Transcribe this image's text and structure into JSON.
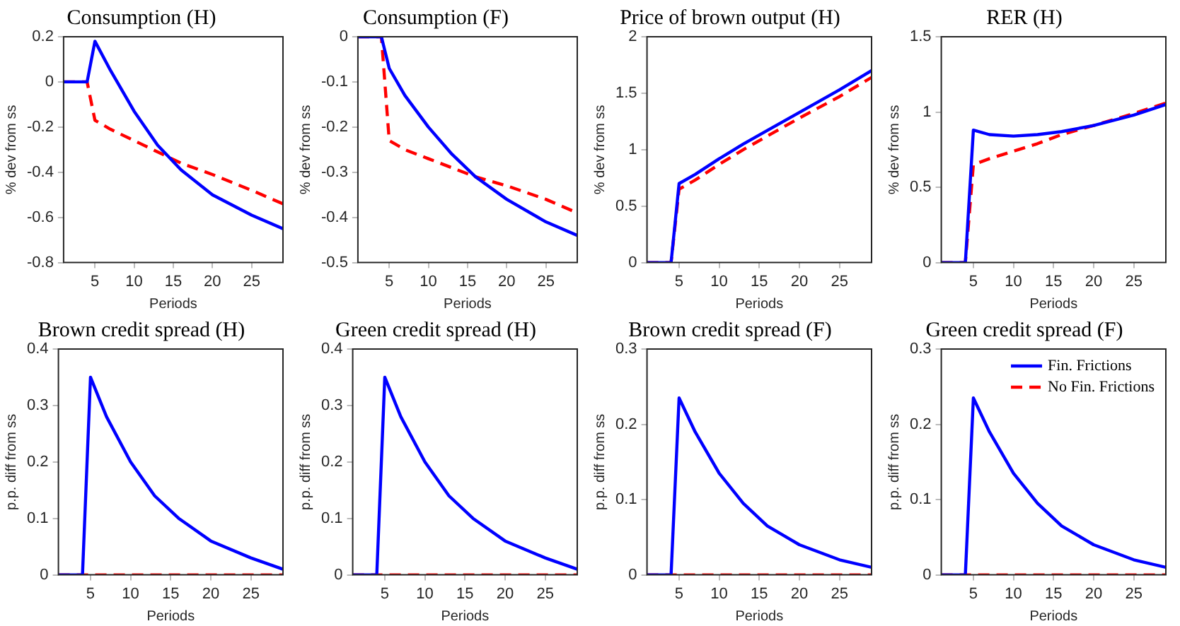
{
  "chart_data": [
    {
      "type": "line",
      "title": "Consumption (H)",
      "xlabel": "Periods",
      "ylabel": "% dev from ss",
      "x": [
        1,
        4,
        5,
        7,
        10,
        13,
        16,
        20,
        25,
        29
      ],
      "xlim": [
        1,
        29
      ],
      "xticks": [
        5,
        10,
        15,
        20,
        25
      ],
      "ylim": [
        -0.8,
        0.2
      ],
      "yticks": [
        -0.8,
        -0.6,
        -0.4,
        -0.2,
        0,
        0.2
      ],
      "grid": false,
      "legend": false,
      "marker": "none",
      "series": [
        {
          "color": "#0000ff",
          "line_style": "solid",
          "values": [
            0,
            0,
            0.18,
            0.05,
            -0.13,
            -0.28,
            -0.39,
            -0.5,
            -0.59,
            -0.65
          ]
        },
        {
          "color": "#ff0000",
          "line_style": "dashed",
          "values": [
            0,
            0,
            -0.17,
            -0.21,
            -0.26,
            -0.31,
            -0.36,
            -0.41,
            -0.48,
            -0.54
          ]
        }
      ]
    },
    {
      "type": "line",
      "title": "Consumption (F)",
      "xlabel": "Periods",
      "ylabel": "% dev from ss",
      "x": [
        1,
        4,
        5,
        7,
        10,
        13,
        16,
        20,
        25,
        29
      ],
      "xlim": [
        1,
        29
      ],
      "xticks": [
        5,
        10,
        15,
        20,
        25
      ],
      "ylim": [
        -0.5,
        0
      ],
      "yticks": [
        -0.5,
        -0.4,
        -0.3,
        -0.2,
        -0.1,
        0
      ],
      "grid": false,
      "legend": false,
      "marker": "none",
      "series": [
        {
          "color": "#0000ff",
          "line_style": "solid",
          "values": [
            0,
            0,
            -0.07,
            -0.13,
            -0.2,
            -0.26,
            -0.31,
            -0.36,
            -0.41,
            -0.44
          ]
        },
        {
          "color": "#ff0000",
          "line_style": "dashed",
          "values": [
            0,
            0,
            -0.23,
            -0.25,
            -0.27,
            -0.29,
            -0.31,
            -0.33,
            -0.36,
            -0.39
          ]
        }
      ]
    },
    {
      "type": "line",
      "title": "Price of brown output (H)",
      "xlabel": "Periods",
      "ylabel": "% dev from ss",
      "x": [
        1,
        4,
        5,
        7,
        10,
        13,
        16,
        20,
        25,
        29
      ],
      "xlim": [
        1,
        29
      ],
      "xticks": [
        5,
        10,
        15,
        20,
        25
      ],
      "ylim": [
        0,
        2
      ],
      "yticks": [
        0,
        0.5,
        1,
        1.5,
        2
      ],
      "grid": false,
      "legend": false,
      "marker": "none",
      "series": [
        {
          "color": "#0000ff",
          "line_style": "solid",
          "values": [
            0,
            0,
            0.7,
            0.78,
            0.92,
            1.05,
            1.17,
            1.33,
            1.53,
            1.7
          ]
        },
        {
          "color": "#ff0000",
          "line_style": "dashed",
          "values": [
            0,
            0,
            0.65,
            0.73,
            0.87,
            1.0,
            1.12,
            1.28,
            1.47,
            1.64
          ]
        }
      ]
    },
    {
      "type": "line",
      "title": "RER (H)",
      "xlabel": "Periods",
      "ylabel": "% dev from ss",
      "x": [
        1,
        4,
        5,
        7,
        10,
        13,
        16,
        20,
        25,
        29
      ],
      "xlim": [
        1,
        29
      ],
      "xticks": [
        5,
        10,
        15,
        20,
        25
      ],
      "ylim": [
        0,
        1.5
      ],
      "yticks": [
        0,
        0.5,
        1,
        1.5
      ],
      "grid": false,
      "legend": false,
      "marker": "none",
      "series": [
        {
          "color": "#0000ff",
          "line_style": "solid",
          "values": [
            0,
            0,
            0.88,
            0.85,
            0.84,
            0.85,
            0.87,
            0.91,
            0.98,
            1.05
          ]
        },
        {
          "color": "#ff0000",
          "line_style": "dashed",
          "values": [
            0,
            0,
            0.65,
            0.69,
            0.74,
            0.79,
            0.85,
            0.91,
            0.99,
            1.06
          ]
        }
      ]
    },
    {
      "type": "line",
      "title": "Brown credit spread (H)",
      "xlabel": "Periods",
      "ylabel": "p.p. diff from ss",
      "x": [
        1,
        4,
        5,
        7,
        10,
        13,
        16,
        20,
        25,
        29
      ],
      "xlim": [
        1,
        29
      ],
      "xticks": [
        5,
        10,
        15,
        20,
        25
      ],
      "ylim": [
        0,
        0.4
      ],
      "yticks": [
        0,
        0.1,
        0.2,
        0.3,
        0.4
      ],
      "grid": false,
      "legend": false,
      "marker": "none",
      "series": [
        {
          "color": "#0000ff",
          "line_style": "solid",
          "values": [
            0,
            0,
            0.35,
            0.28,
            0.2,
            0.14,
            0.1,
            0.06,
            0.03,
            0.01
          ]
        },
        {
          "color": "#ff0000",
          "line_style": "dashed",
          "values": [
            0,
            0,
            0,
            0,
            0,
            0,
            0,
            0,
            0,
            0
          ]
        }
      ]
    },
    {
      "type": "line",
      "title": "Green credit spread (H)",
      "xlabel": "Periods",
      "ylabel": "p.p. diff from ss",
      "x": [
        1,
        4,
        5,
        7,
        10,
        13,
        16,
        20,
        25,
        29
      ],
      "xlim": [
        1,
        29
      ],
      "xticks": [
        5,
        10,
        15,
        20,
        25
      ],
      "ylim": [
        0,
        0.4
      ],
      "yticks": [
        0,
        0.1,
        0.2,
        0.3,
        0.4
      ],
      "grid": false,
      "legend": false,
      "marker": "none",
      "series": [
        {
          "color": "#0000ff",
          "line_style": "solid",
          "values": [
            0,
            0,
            0.35,
            0.28,
            0.2,
            0.14,
            0.1,
            0.06,
            0.03,
            0.01
          ]
        },
        {
          "color": "#ff0000",
          "line_style": "dashed",
          "values": [
            0,
            0,
            0,
            0,
            0,
            0,
            0,
            0,
            0,
            0
          ]
        }
      ]
    },
    {
      "type": "line",
      "title": "Brown credit spread (F)",
      "xlabel": "Periods",
      "ylabel": "p.p. diff from ss",
      "x": [
        1,
        4,
        5,
        7,
        10,
        13,
        16,
        20,
        25,
        29
      ],
      "xlim": [
        1,
        29
      ],
      "xticks": [
        5,
        10,
        15,
        20,
        25
      ],
      "ylim": [
        0,
        0.3
      ],
      "yticks": [
        0,
        0.1,
        0.2,
        0.3
      ],
      "grid": false,
      "legend": false,
      "marker": "none",
      "series": [
        {
          "color": "#0000ff",
          "line_style": "solid",
          "values": [
            0,
            0,
            0.235,
            0.19,
            0.135,
            0.095,
            0.065,
            0.04,
            0.02,
            0.01
          ]
        },
        {
          "color": "#ff0000",
          "line_style": "dashed",
          "values": [
            0,
            0,
            0,
            0,
            0,
            0,
            0,
            0,
            0,
            0
          ]
        }
      ]
    },
    {
      "type": "line",
      "title": "Green credit spread (F)",
      "xlabel": "Periods",
      "ylabel": "p.p. diff from ss",
      "x": [
        1,
        4,
        5,
        7,
        10,
        13,
        16,
        20,
        25,
        29
      ],
      "xlim": [
        1,
        29
      ],
      "xticks": [
        5,
        10,
        15,
        20,
        25
      ],
      "ylim": [
        0,
        0.3
      ],
      "yticks": [
        0,
        0.1,
        0.2,
        0.3
      ],
      "grid": false,
      "legend": "top right",
      "marker": "none",
      "series": [
        {
          "name": "Fin. Frictions",
          "color": "#0000ff",
          "line_style": "solid",
          "values": [
            0,
            0,
            0.235,
            0.19,
            0.135,
            0.095,
            0.065,
            0.04,
            0.02,
            0.01
          ]
        },
        {
          "name": "No Fin. Frictions",
          "color": "#ff0000",
          "line_style": "dashed",
          "values": [
            0,
            0,
            0,
            0,
            0,
            0,
            0,
            0,
            0,
            0
          ]
        }
      ]
    }
  ]
}
